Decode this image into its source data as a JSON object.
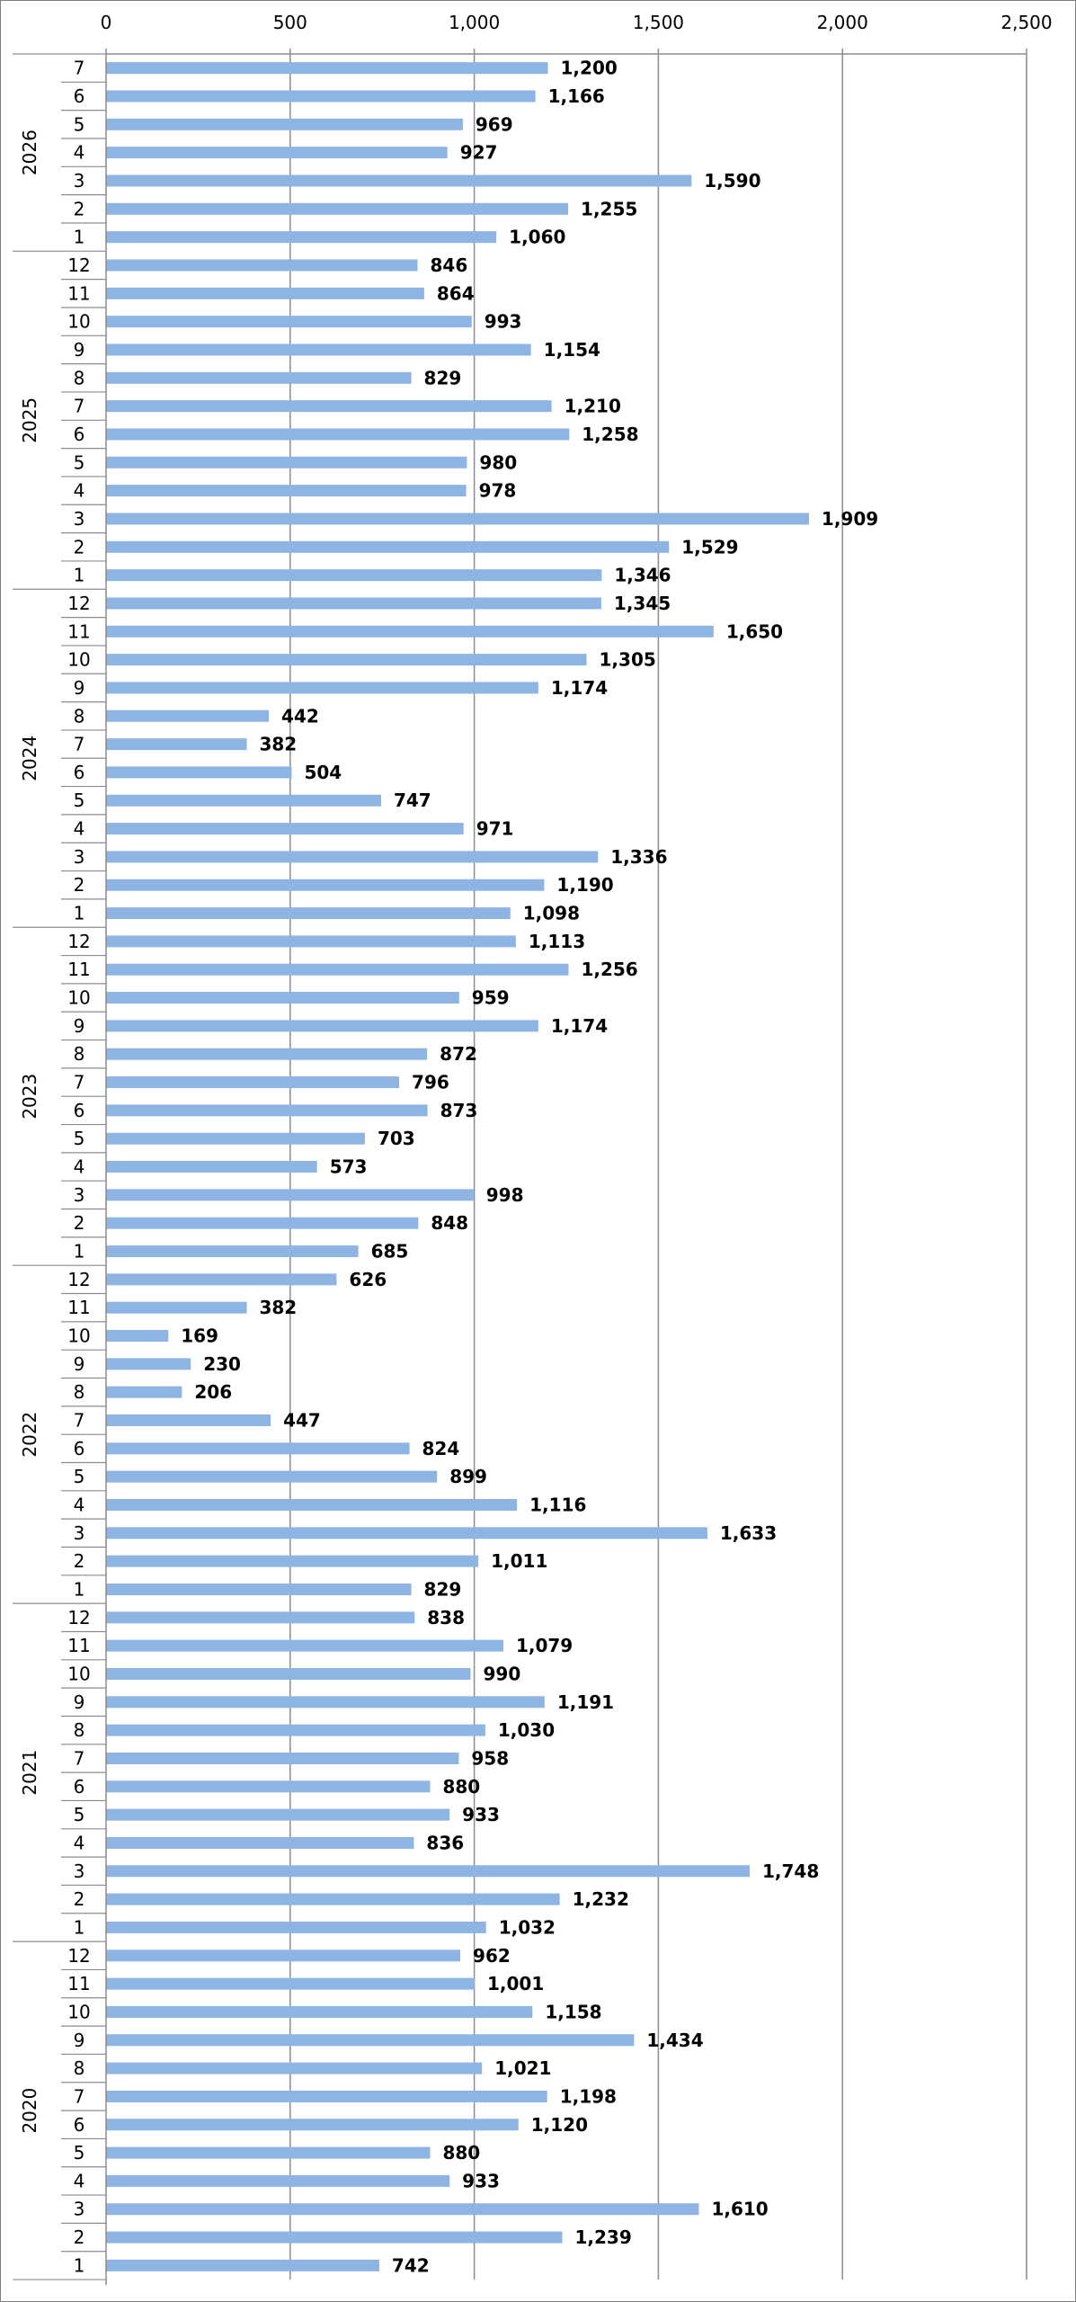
{
  "chart_data": {
    "type": "bar",
    "orientation": "horizontal",
    "xlim": [
      0,
      2500
    ],
    "x_ticks": [
      0,
      500,
      1000,
      1500,
      2000,
      2500
    ],
    "x_tick_labels": [
      "0",
      "500",
      "1,000",
      "1,500",
      "2,000",
      "2,500"
    ],
    "grid": true,
    "bar_color": "#8eb4e3",
    "years": [
      {
        "year": "2026",
        "months": [
          {
            "month": "7",
            "value": 1200,
            "label": "1,200"
          },
          {
            "month": "6",
            "value": 1166,
            "label": "1,166"
          },
          {
            "month": "5",
            "value": 969,
            "label": "969"
          },
          {
            "month": "4",
            "value": 927,
            "label": "927"
          },
          {
            "month": "3",
            "value": 1590,
            "label": "1,590"
          },
          {
            "month": "2",
            "value": 1255,
            "label": "1,255"
          },
          {
            "month": "1",
            "value": 1060,
            "label": "1,060"
          }
        ]
      },
      {
        "year": "2025",
        "months": [
          {
            "month": "12",
            "value": 846,
            "label": "846"
          },
          {
            "month": "11",
            "value": 864,
            "label": "864"
          },
          {
            "month": "10",
            "value": 993,
            "label": "993"
          },
          {
            "month": "9",
            "value": 1154,
            "label": "1,154"
          },
          {
            "month": "8",
            "value": 829,
            "label": "829"
          },
          {
            "month": "7",
            "value": 1210,
            "label": "1,210"
          },
          {
            "month": "6",
            "value": 1258,
            "label": "1,258"
          },
          {
            "month": "5",
            "value": 980,
            "label": "980"
          },
          {
            "month": "4",
            "value": 978,
            "label": "978"
          },
          {
            "month": "3",
            "value": 1909,
            "label": "1,909"
          },
          {
            "month": "2",
            "value": 1529,
            "label": "1,529"
          },
          {
            "month": "1",
            "value": 1346,
            "label": "1,346"
          }
        ]
      },
      {
        "year": "2024",
        "months": [
          {
            "month": "12",
            "value": 1345,
            "label": "1,345"
          },
          {
            "month": "11",
            "value": 1650,
            "label": "1,650"
          },
          {
            "month": "10",
            "value": 1305,
            "label": "1,305"
          },
          {
            "month": "9",
            "value": 1174,
            "label": "1,174"
          },
          {
            "month": "8",
            "value": 442,
            "label": "442"
          },
          {
            "month": "7",
            "value": 382,
            "label": "382"
          },
          {
            "month": "6",
            "value": 504,
            "label": "504"
          },
          {
            "month": "5",
            "value": 747,
            "label": "747"
          },
          {
            "month": "4",
            "value": 971,
            "label": "971"
          },
          {
            "month": "3",
            "value": 1336,
            "label": "1,336"
          },
          {
            "month": "2",
            "value": 1190,
            "label": "1,190"
          },
          {
            "month": "1",
            "value": 1098,
            "label": "1,098"
          }
        ]
      },
      {
        "year": "2023",
        "months": [
          {
            "month": "12",
            "value": 1113,
            "label": "1,113"
          },
          {
            "month": "11",
            "value": 1256,
            "label": "1,256"
          },
          {
            "month": "10",
            "value": 959,
            "label": "959"
          },
          {
            "month": "9",
            "value": 1174,
            "label": "1,174"
          },
          {
            "month": "8",
            "value": 872,
            "label": "872"
          },
          {
            "month": "7",
            "value": 796,
            "label": "796"
          },
          {
            "month": "6",
            "value": 873,
            "label": "873"
          },
          {
            "month": "5",
            "value": 703,
            "label": "703"
          },
          {
            "month": "4",
            "value": 573,
            "label": "573"
          },
          {
            "month": "3",
            "value": 998,
            "label": "998"
          },
          {
            "month": "2",
            "value": 848,
            "label": "848"
          },
          {
            "month": "1",
            "value": 685,
            "label": "685"
          }
        ]
      },
      {
        "year": "2022",
        "months": [
          {
            "month": "12",
            "value": 626,
            "label": "626"
          },
          {
            "month": "11",
            "value": 382,
            "label": "382"
          },
          {
            "month": "10",
            "value": 169,
            "label": "169"
          },
          {
            "month": "9",
            "value": 230,
            "label": "230"
          },
          {
            "month": "8",
            "value": 206,
            "label": "206"
          },
          {
            "month": "7",
            "value": 447,
            "label": "447"
          },
          {
            "month": "6",
            "value": 824,
            "label": "824"
          },
          {
            "month": "5",
            "value": 899,
            "label": "899"
          },
          {
            "month": "4",
            "value": 1116,
            "label": "1,116"
          },
          {
            "month": "3",
            "value": 1633,
            "label": "1,633"
          },
          {
            "month": "2",
            "value": 1011,
            "label": "1,011"
          },
          {
            "month": "1",
            "value": 829,
            "label": "829"
          }
        ]
      },
      {
        "year": "2021",
        "months": [
          {
            "month": "12",
            "value": 838,
            "label": "838"
          },
          {
            "month": "11",
            "value": 1079,
            "label": "1,079"
          },
          {
            "month": "10",
            "value": 990,
            "label": "990"
          },
          {
            "month": "9",
            "value": 1191,
            "label": "1,191"
          },
          {
            "month": "8",
            "value": 1030,
            "label": "1,030"
          },
          {
            "month": "7",
            "value": 958,
            "label": "958"
          },
          {
            "month": "6",
            "value": 880,
            "label": "880"
          },
          {
            "month": "5",
            "value": 933,
            "label": "933"
          },
          {
            "month": "4",
            "value": 836,
            "label": "836"
          },
          {
            "month": "3",
            "value": 1748,
            "label": "1,748"
          },
          {
            "month": "2",
            "value": 1232,
            "label": "1,232"
          },
          {
            "month": "1",
            "value": 1032,
            "label": "1,032"
          }
        ]
      },
      {
        "year": "2020",
        "months": [
          {
            "month": "12",
            "value": 962,
            "label": "962"
          },
          {
            "month": "11",
            "value": 1001,
            "label": "1,001"
          },
          {
            "month": "10",
            "value": 1158,
            "label": "1,158"
          },
          {
            "month": "9",
            "value": 1434,
            "label": "1,434"
          },
          {
            "month": "8",
            "value": 1021,
            "label": "1,021"
          },
          {
            "month": "7",
            "value": 1198,
            "label": "1,198"
          },
          {
            "month": "6",
            "value": 1120,
            "label": "1,120"
          },
          {
            "month": "5",
            "value": 880,
            "label": "880"
          },
          {
            "month": "4",
            "value": 933,
            "label": "933"
          },
          {
            "month": "3",
            "value": 1610,
            "label": "1,610"
          },
          {
            "month": "2",
            "value": 1239,
            "label": "1,239"
          },
          {
            "month": "1",
            "value": 742,
            "label": "742"
          }
        ]
      }
    ]
  }
}
